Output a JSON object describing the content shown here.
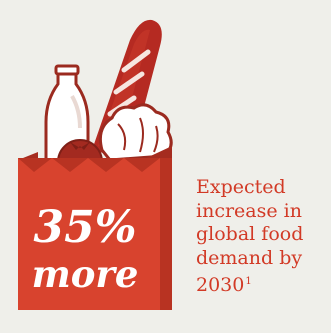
{
  "stat": {
    "value": "35%",
    "word": "more"
  },
  "caption": {
    "lines": [
      "Expected",
      "increase in",
      "global food",
      "demand by"
    ],
    "year": "2030",
    "footnote": "1"
  },
  "colors": {
    "background": "#efefea",
    "bag": "#d8432e",
    "bag_dark": "#b83322",
    "accent_dark": "#8e2a1e",
    "text_accent": "#d23a26"
  },
  "icons": [
    "grocery-bag-icon",
    "milk-bottle-icon",
    "baguette-icon",
    "tomato-icon",
    "lettuce-icon"
  ]
}
